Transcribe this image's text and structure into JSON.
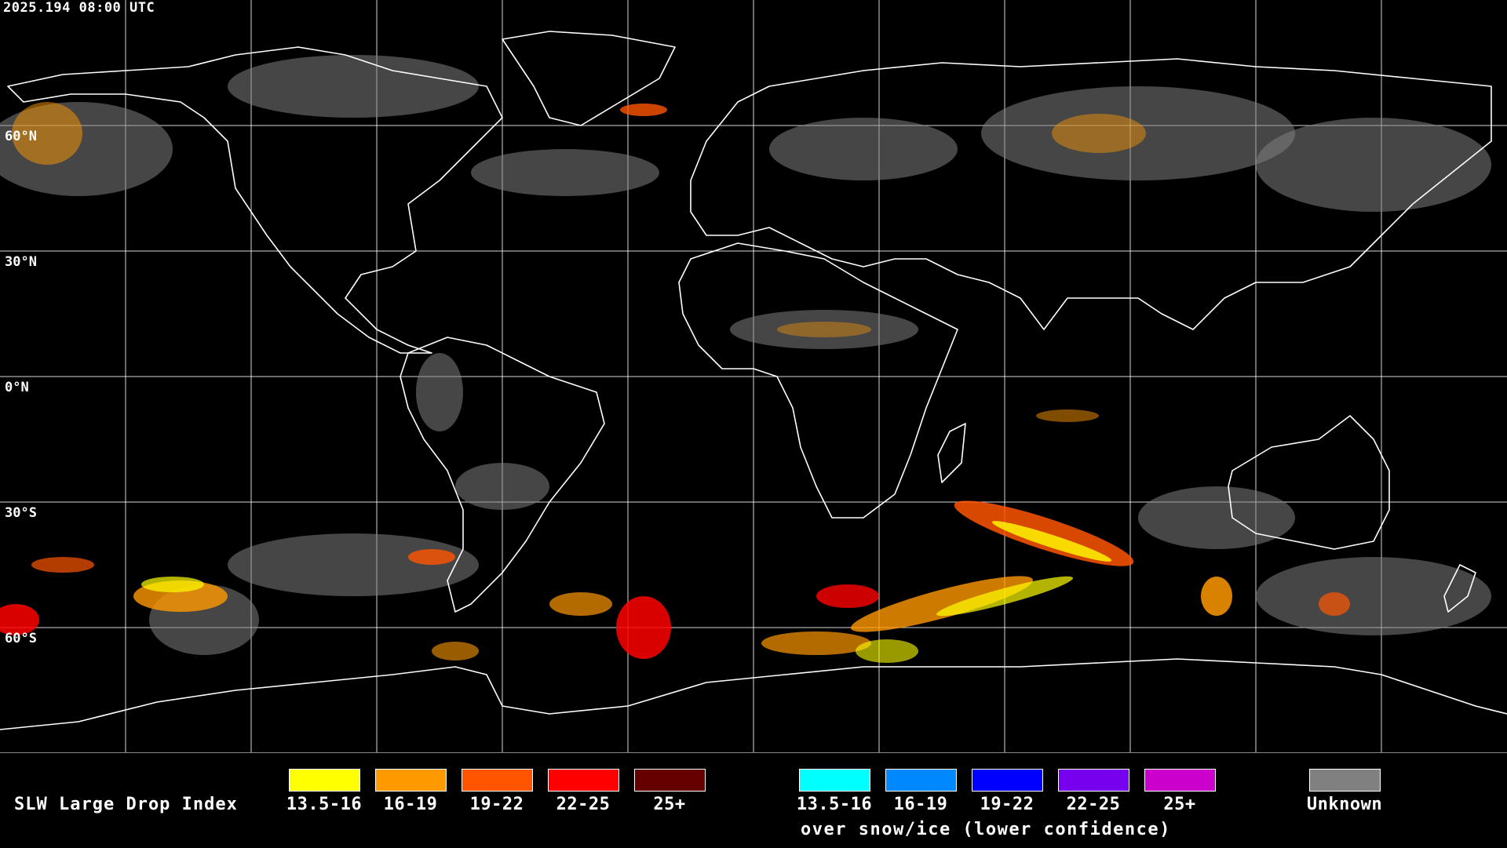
{
  "timestamp": "2025.194 08:00 UTC",
  "lat_labels": [
    "60°N",
    "30°N",
    "0°N",
    "30°S",
    "60°S"
  ],
  "legend": {
    "title": "SLW Large Drop Index",
    "primary": [
      {
        "label": "13.5-16",
        "color": "#ffff00"
      },
      {
        "label": "16-19",
        "color": "#ff9900"
      },
      {
        "label": "19-22",
        "color": "#ff5500"
      },
      {
        "label": "22-25",
        "color": "#ff0000"
      },
      {
        "label": "25+",
        "color": "#660000"
      }
    ],
    "snow_ice": [
      {
        "label": "13.5-16",
        "color": "#00ffff"
      },
      {
        "label": "16-19",
        "color": "#0088ff"
      },
      {
        "label": "19-22",
        "color": "#0000ff"
      },
      {
        "label": "22-25",
        "color": "#7700ee"
      },
      {
        "label": "25+",
        "color": "#cc00cc"
      }
    ],
    "snow_note": "over snow/ice (lower confidence)",
    "unknown": {
      "label": "Unknown",
      "color": "#808080"
    }
  }
}
